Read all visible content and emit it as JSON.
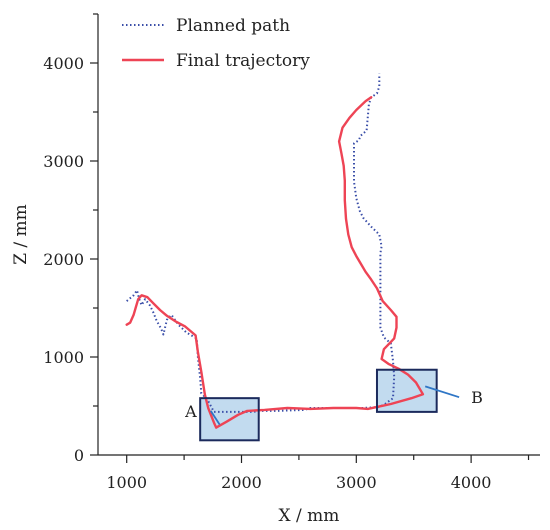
{
  "chart_data": {
    "type": "line",
    "xlabel": "X / mm",
    "ylabel": "Z / mm",
    "xlim": [
      750,
      4600
    ],
    "ylim": [
      0,
      4500
    ],
    "xticks": [
      1000,
      2000,
      3000,
      4000
    ],
    "yticks": [
      0,
      1000,
      2000,
      3000,
      4000
    ],
    "legend_position": "top-left",
    "grid": false,
    "series": [
      {
        "name": "Planned path",
        "color": "#3a4ea8",
        "style": "dotted",
        "points": [
          [
            1000,
            1570
          ],
          [
            1060,
            1630
          ],
          [
            1090,
            1680
          ],
          [
            1110,
            1590
          ],
          [
            1130,
            1530
          ],
          [
            1160,
            1590
          ],
          [
            1200,
            1530
          ],
          [
            1230,
            1460
          ],
          [
            1260,
            1370
          ],
          [
            1300,
            1290
          ],
          [
            1320,
            1230
          ],
          [
            1350,
            1380
          ],
          [
            1390,
            1430
          ],
          [
            1450,
            1330
          ],
          [
            1520,
            1250
          ],
          [
            1610,
            1190
          ],
          [
            1620,
            1000
          ],
          [
            1640,
            780
          ],
          [
            1650,
            630
          ],
          [
            1700,
            570
          ],
          [
            1760,
            440
          ],
          [
            2050,
            440
          ],
          [
            2100,
            440
          ],
          [
            2150,
            450
          ],
          [
            2300,
            450
          ],
          [
            2550,
            460
          ],
          [
            2600,
            480
          ],
          [
            3000,
            480
          ],
          [
            3050,
            480
          ],
          [
            3200,
            490
          ],
          [
            3250,
            520
          ],
          [
            3320,
            580
          ],
          [
            3330,
            800
          ],
          [
            3320,
            960
          ],
          [
            3300,
            1140
          ],
          [
            3240,
            1200
          ],
          [
            3210,
            1300
          ],
          [
            3210,
            1560
          ],
          [
            3210,
            2060
          ],
          [
            3220,
            2130
          ],
          [
            3200,
            2250
          ],
          [
            3130,
            2330
          ],
          [
            3060,
            2420
          ],
          [
            3030,
            2490
          ],
          [
            3000,
            2620
          ],
          [
            2980,
            2790
          ],
          [
            2980,
            3080
          ],
          [
            2980,
            3180
          ],
          [
            3020,
            3210
          ],
          [
            3040,
            3260
          ],
          [
            3090,
            3310
          ],
          [
            3110,
            3580
          ],
          [
            3130,
            3650
          ],
          [
            3180,
            3690
          ],
          [
            3200,
            3760
          ],
          [
            3200,
            3890
          ]
        ]
      },
      {
        "name": "Final trajectory",
        "color": "#ee4455",
        "style": "solid",
        "points": [
          [
            1000,
            1330
          ],
          [
            1030,
            1350
          ],
          [
            1060,
            1430
          ],
          [
            1080,
            1510
          ],
          [
            1100,
            1590
          ],
          [
            1130,
            1630
          ],
          [
            1180,
            1610
          ],
          [
            1230,
            1550
          ],
          [
            1290,
            1480
          ],
          [
            1350,
            1420
          ],
          [
            1430,
            1360
          ],
          [
            1510,
            1310
          ],
          [
            1600,
            1220
          ],
          [
            1620,
            1050
          ],
          [
            1650,
            850
          ],
          [
            1680,
            620
          ],
          [
            1710,
            480
          ],
          [
            1760,
            330
          ],
          [
            1780,
            280
          ],
          [
            1870,
            340
          ],
          [
            1970,
            410
          ],
          [
            2050,
            450
          ],
          [
            2200,
            460
          ],
          [
            2400,
            480
          ],
          [
            2600,
            470
          ],
          [
            2800,
            480
          ],
          [
            3000,
            480
          ],
          [
            3100,
            470
          ],
          [
            3300,
            520
          ],
          [
            3480,
            580
          ],
          [
            3580,
            620
          ],
          [
            3520,
            740
          ],
          [
            3450,
            820
          ],
          [
            3370,
            880
          ],
          [
            3280,
            930
          ],
          [
            3220,
            980
          ],
          [
            3240,
            1080
          ],
          [
            3330,
            1190
          ],
          [
            3350,
            1300
          ],
          [
            3350,
            1410
          ],
          [
            3300,
            1480
          ],
          [
            3230,
            1570
          ],
          [
            3180,
            1700
          ],
          [
            3130,
            1790
          ],
          [
            3080,
            1870
          ],
          [
            3040,
            1950
          ],
          [
            3000,
            2030
          ],
          [
            2960,
            2120
          ],
          [
            2930,
            2250
          ],
          [
            2910,
            2410
          ],
          [
            2900,
            2600
          ],
          [
            2900,
            2800
          ],
          [
            2890,
            2950
          ],
          [
            2870,
            3080
          ],
          [
            2850,
            3200
          ],
          [
            2880,
            3340
          ],
          [
            2940,
            3440
          ],
          [
            3000,
            3520
          ],
          [
            3080,
            3610
          ],
          [
            3130,
            3650
          ]
        ]
      }
    ],
    "annotations": [
      {
        "label": "A",
        "box": {
          "x0": 1640,
          "x1": 2150,
          "y0": 150,
          "y1": 580
        },
        "pointer": [
          1810,
          310
        ],
        "label_at": [
          1610,
          450
        ]
      },
      {
        "label": "B",
        "box": {
          "x0": 3180,
          "x1": 3700,
          "y0": 440,
          "y1": 870
        },
        "pointer": [
          3600,
          700
        ],
        "label_at": [
          4000,
          590
        ]
      }
    ],
    "annotation_fill": "#b7d5ec",
    "annotation_stroke": "#1b2a5c",
    "annotation_pointer_color": "#2f76c6"
  }
}
